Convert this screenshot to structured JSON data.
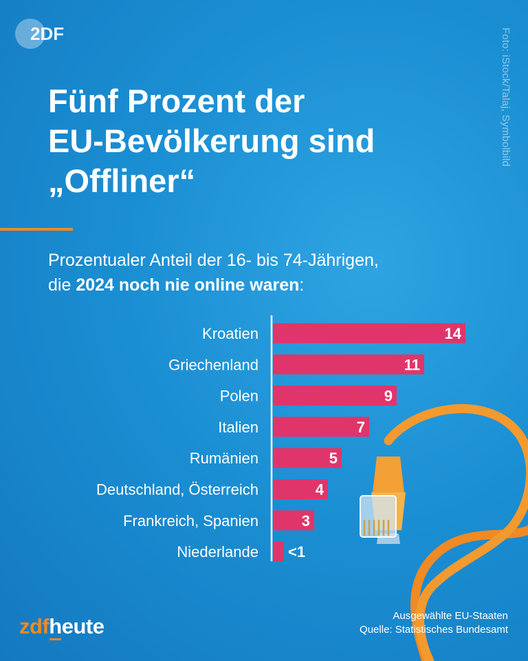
{
  "brand": {
    "logo_text": "2DF",
    "zdf": "zdf",
    "heute_first": "h",
    "heute_rest": "eute"
  },
  "credit": "Foto: iStock/Talaj, Symbolbild",
  "title": {
    "line1": "Fünf Prozent der",
    "line2": "EU-Bevölkerung sind",
    "line3": "„Offliner“"
  },
  "subtitle": {
    "line1": "Prozentualer Anteil der 16- bis 74-Jährigen,",
    "line2_pre": "die ",
    "line2_bold": "2024 noch nie online waren",
    "line2_post": ":"
  },
  "chart_data": {
    "type": "bar",
    "orientation": "horizontal",
    "title": "Fünf Prozent der EU-Bevölkerung sind „Offliner“",
    "subtitle": "Prozentualer Anteil der 16- bis 74-Jährigen, die 2024 noch nie online waren:",
    "categories": [
      "Kroatien",
      "Griechenland",
      "Polen",
      "Italien",
      "Rumänien",
      "Deutschland, Österreich",
      "Frankreich, Spanien",
      "Niederlande"
    ],
    "values": [
      14,
      11,
      9,
      7,
      5,
      4,
      3,
      0.5
    ],
    "value_labels": [
      "14",
      "11",
      "9",
      "7",
      "5",
      "4",
      "3",
      "<1"
    ],
    "xlim": [
      0,
      14
    ],
    "bar_color": "#e0356a"
  },
  "footnote": {
    "line1": "Ausgewählte EU-Staaten",
    "line2": "Quelle: Statistisches Bundesamt"
  },
  "colors": {
    "accent": "#f08a24",
    "bar": "#e0356a",
    "text": "#ffffff"
  }
}
